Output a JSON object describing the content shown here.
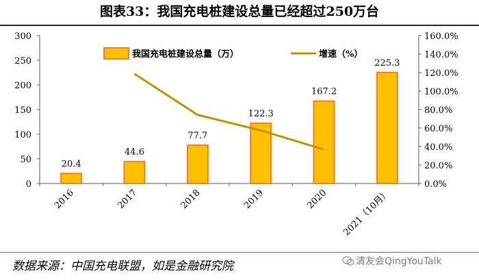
{
  "title": "图表33：我国充电桩建设总量已经超过250万台",
  "source": "数据来源：中国充电联盟，如是金融研究院",
  "watermark": "清友会QingYouTalk",
  "chart_data": {
    "type": "bar+line",
    "categories": [
      "2016",
      "2017",
      "2018",
      "2019",
      "2020",
      "2021（10月）"
    ],
    "series": [
      {
        "name": "我国充电桩建设总量（万）",
        "type": "bar",
        "axis": "left",
        "values": [
          20.4,
          44.6,
          77.7,
          122.3,
          167.2,
          225.3
        ],
        "labels": [
          "20.4",
          "44.6",
          "77.7",
          "122.3",
          "167.2",
          "225.3"
        ],
        "color": "#FFC000",
        "edge_color": "#ED7D31"
      },
      {
        "name": "增速（%）",
        "type": "line",
        "axis": "right",
        "values": [
          null,
          118.6,
          74.2,
          57.4,
          36.7,
          null
        ],
        "color": "#BF9000"
      }
    ],
    "y_left": {
      "range": [
        0,
        300
      ],
      "ticks": [
        0,
        50,
        100,
        150,
        200,
        250,
        300
      ],
      "tick_labels": [
        "0",
        "50",
        "100",
        "150",
        "200",
        "250",
        "300"
      ]
    },
    "y_right": {
      "range": [
        0,
        1.6
      ],
      "ticks": [
        0,
        0.2,
        0.4,
        0.6,
        0.8,
        1.0,
        1.2,
        1.4,
        1.6
      ],
      "tick_labels": [
        "0.0%",
        "20.0%",
        "40.0%",
        "60.0%",
        "80.0%",
        "100.0%",
        "120.0%",
        "140.0%",
        "160.0%"
      ]
    },
    "legend_position": "top",
    "grid": false
  }
}
